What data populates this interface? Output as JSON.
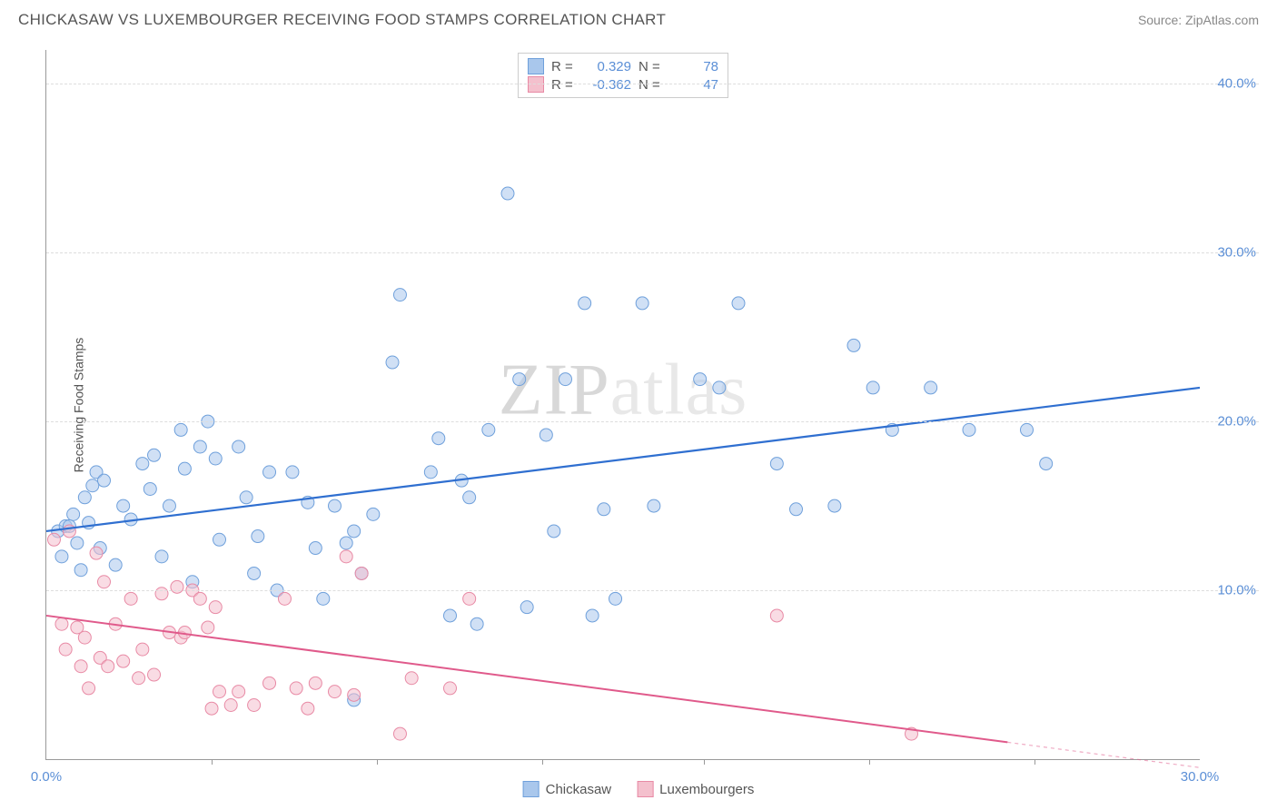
{
  "title": "CHICKASAW VS LUXEMBOURGER RECEIVING FOOD STAMPS CORRELATION CHART",
  "source_label": "Source:",
  "source_name": "ZipAtlas.com",
  "watermark": {
    "zip": "ZIP",
    "atlas": "atlas"
  },
  "y_axis_label": "Receiving Food Stamps",
  "chart": {
    "type": "scatter",
    "xlim": [
      0,
      30
    ],
    "ylim": [
      0,
      42
    ],
    "x_ticks": [
      0,
      30
    ],
    "x_tick_labels": [
      "0.0%",
      "30.0%"
    ],
    "x_minor_ticks": [
      4.3,
      8.6,
      12.9,
      17.1,
      21.4,
      25.7
    ],
    "y_ticks": [
      10,
      20,
      30,
      40
    ],
    "y_tick_labels": [
      "10.0%",
      "20.0%",
      "30.0%",
      "40.0%"
    ],
    "grid_color": "#dddddd",
    "background_color": "#ffffff",
    "axis_color": "#999999",
    "tick_label_color": "#5b8fd6",
    "marker_radius": 7,
    "marker_opacity": 0.55,
    "series": [
      {
        "name": "Chickasaw",
        "color_fill": "#a9c7ec",
        "color_stroke": "#6fa0db",
        "R": "0.329",
        "N": "78",
        "trend": {
          "x1": 0,
          "y1": 13.5,
          "x2": 30,
          "y2": 22.0,
          "color": "#2f6fd0",
          "width": 2.2
        },
        "points": [
          [
            0.3,
            13.5
          ],
          [
            0.4,
            12.0
          ],
          [
            0.5,
            13.8
          ],
          [
            0.6,
            13.8
          ],
          [
            0.7,
            14.5
          ],
          [
            0.8,
            12.8
          ],
          [
            0.9,
            11.2
          ],
          [
            1.0,
            15.5
          ],
          [
            1.1,
            14.0
          ],
          [
            1.2,
            16.2
          ],
          [
            1.3,
            17.0
          ],
          [
            1.4,
            12.5
          ],
          [
            1.5,
            16.5
          ],
          [
            1.8,
            11.5
          ],
          [
            2.0,
            15.0
          ],
          [
            2.2,
            14.2
          ],
          [
            2.5,
            17.5
          ],
          [
            2.7,
            16.0
          ],
          [
            2.8,
            18.0
          ],
          [
            3.0,
            12.0
          ],
          [
            3.2,
            15.0
          ],
          [
            3.5,
            19.5
          ],
          [
            3.6,
            17.2
          ],
          [
            3.8,
            10.5
          ],
          [
            4.0,
            18.5
          ],
          [
            4.2,
            20.0
          ],
          [
            4.4,
            17.8
          ],
          [
            4.5,
            13.0
          ],
          [
            5.0,
            18.5
          ],
          [
            5.2,
            15.5
          ],
          [
            5.4,
            11.0
          ],
          [
            5.5,
            13.2
          ],
          [
            5.8,
            17.0
          ],
          [
            6.0,
            10.0
          ],
          [
            6.4,
            17.0
          ],
          [
            6.8,
            15.2
          ],
          [
            7.0,
            12.5
          ],
          [
            7.2,
            9.5
          ],
          [
            7.5,
            15.0
          ],
          [
            7.8,
            12.8
          ],
          [
            8.0,
            13.5
          ],
          [
            8.0,
            3.5
          ],
          [
            8.2,
            11.0
          ],
          [
            8.5,
            14.5
          ],
          [
            9.0,
            23.5
          ],
          [
            9.2,
            27.5
          ],
          [
            10.0,
            17.0
          ],
          [
            10.2,
            19.0
          ],
          [
            10.5,
            8.5
          ],
          [
            10.8,
            16.5
          ],
          [
            11.0,
            15.5
          ],
          [
            11.2,
            8.0
          ],
          [
            11.5,
            19.5
          ],
          [
            12.0,
            33.5
          ],
          [
            12.3,
            22.5
          ],
          [
            12.5,
            9.0
          ],
          [
            13.0,
            19.2
          ],
          [
            13.2,
            13.5
          ],
          [
            13.5,
            22.5
          ],
          [
            14.0,
            27.0
          ],
          [
            14.2,
            8.5
          ],
          [
            14.5,
            14.8
          ],
          [
            14.8,
            9.5
          ],
          [
            15.5,
            27.0
          ],
          [
            15.8,
            15.0
          ],
          [
            17.0,
            22.5
          ],
          [
            17.5,
            22.0
          ],
          [
            18.0,
            27.0
          ],
          [
            19.0,
            17.5
          ],
          [
            19.5,
            14.8
          ],
          [
            20.5,
            15.0
          ],
          [
            21.0,
            24.5
          ],
          [
            21.5,
            22.0
          ],
          [
            22.0,
            19.5
          ],
          [
            23.0,
            22.0
          ],
          [
            24.0,
            19.5
          ],
          [
            25.5,
            19.5
          ],
          [
            26.0,
            17.5
          ]
        ]
      },
      {
        "name": "Luxembourgers",
        "color_fill": "#f4c0cd",
        "color_stroke": "#e88aa5",
        "R": "-0.362",
        "N": "47",
        "trend": {
          "x1": 0,
          "y1": 8.5,
          "x2": 25,
          "y2": 1.0,
          "color": "#e05a8b",
          "width": 2.0,
          "dashed_ext_to": 30,
          "dashed_ext_y": -0.5
        },
        "points": [
          [
            0.2,
            13.0
          ],
          [
            0.4,
            8.0
          ],
          [
            0.5,
            6.5
          ],
          [
            0.6,
            13.5
          ],
          [
            0.8,
            7.8
          ],
          [
            0.9,
            5.5
          ],
          [
            1.0,
            7.2
          ],
          [
            1.1,
            4.2
          ],
          [
            1.3,
            12.2
          ],
          [
            1.4,
            6.0
          ],
          [
            1.5,
            10.5
          ],
          [
            1.6,
            5.5
          ],
          [
            1.8,
            8.0
          ],
          [
            2.0,
            5.8
          ],
          [
            2.2,
            9.5
          ],
          [
            2.4,
            4.8
          ],
          [
            2.5,
            6.5
          ],
          [
            2.8,
            5.0
          ],
          [
            3.0,
            9.8
          ],
          [
            3.2,
            7.5
          ],
          [
            3.4,
            10.2
          ],
          [
            3.5,
            7.2
          ],
          [
            3.6,
            7.5
          ],
          [
            3.8,
            10.0
          ],
          [
            4.0,
            9.5
          ],
          [
            4.2,
            7.8
          ],
          [
            4.3,
            3.0
          ],
          [
            4.4,
            9.0
          ],
          [
            4.5,
            4.0
          ],
          [
            4.8,
            3.2
          ],
          [
            5.0,
            4.0
          ],
          [
            5.4,
            3.2
          ],
          [
            5.8,
            4.5
          ],
          [
            6.2,
            9.5
          ],
          [
            6.5,
            4.2
          ],
          [
            6.8,
            3.0
          ],
          [
            7.0,
            4.5
          ],
          [
            7.5,
            4.0
          ],
          [
            7.8,
            12.0
          ],
          [
            8.2,
            11.0
          ],
          [
            8.0,
            3.8
          ],
          [
            9.2,
            1.5
          ],
          [
            9.5,
            4.8
          ],
          [
            10.5,
            4.2
          ],
          [
            11.0,
            9.5
          ],
          [
            19.0,
            8.5
          ],
          [
            22.5,
            1.5
          ]
        ]
      }
    ]
  },
  "legend_box_labels": {
    "R": "R =",
    "N": "N ="
  },
  "bottom_legend": [
    "Chickasaw",
    "Luxembourgers"
  ]
}
